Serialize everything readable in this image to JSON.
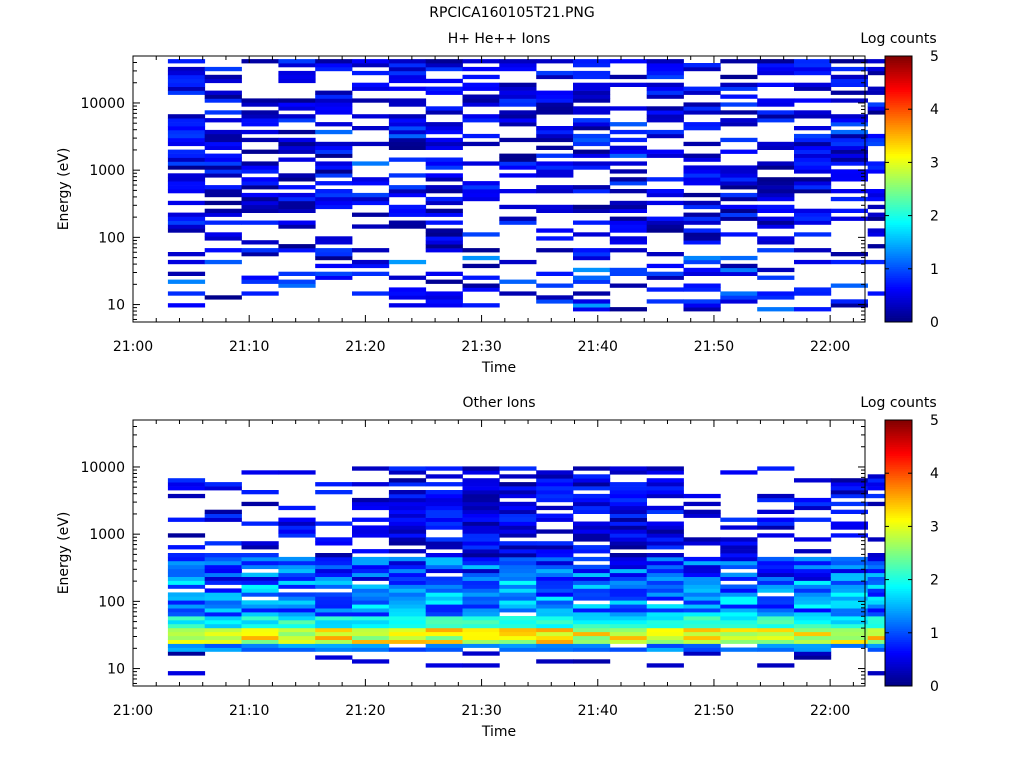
{
  "figure": {
    "filename_title": "RPCICA160105T21.PNG"
  },
  "colors": {
    "colormap": [
      "#000080",
      "#0000ff",
      "#0080ff",
      "#00ffff",
      "#80ff80",
      "#ffff00",
      "#ff8000",
      "#ff0000",
      "#800000"
    ],
    "background": "#ffffff"
  },
  "chart_data": [
    {
      "type": "heatmap",
      "title": "H+ He++ Ions",
      "xlabel": "Time",
      "ylabel": "Energy (eV)",
      "y_scale": "log",
      "ylim": [
        5.5,
        50000
      ],
      "xlim": [
        "21:00",
        "22:03"
      ],
      "x_ticks": [
        "21:00",
        "21:10",
        "21:20",
        "21:30",
        "21:40",
        "21:50",
        "22:00"
      ],
      "y_ticks": [
        "10",
        "100",
        "1000",
        "10000"
      ],
      "colorbar": {
        "label": "Log counts",
        "min": 0,
        "max": 5,
        "ticks": [
          "0",
          "1",
          "2",
          "3",
          "4",
          "5"
        ]
      },
      "time_bins": [
        "21:03",
        "21:06",
        "21:09",
        "21:12",
        "21:15",
        "21:18",
        "21:21",
        "21:24",
        "21:27",
        "21:30",
        "21:33",
        "21:36",
        "21:39",
        "21:42",
        "21:45",
        "21:48",
        "21:51",
        "21:54",
        "21:57",
        "22:00"
      ],
      "dominant_level": "mostly sparse counts, log counts about 0.0 to 1.2 across 10 eV to 40000 eV; isolated cells near 1.3 around 20-40 eV"
    },
    {
      "type": "heatmap",
      "title": "Other Ions",
      "xlabel": "Time",
      "ylabel": "Energy (eV)",
      "y_scale": "log",
      "ylim": [
        5.5,
        50000
      ],
      "xlim": [
        "21:00",
        "22:03"
      ],
      "x_ticks": [
        "21:00",
        "21:10",
        "21:20",
        "21:30",
        "21:40",
        "21:50",
        "22:00"
      ],
      "y_ticks": [
        "10",
        "100",
        "1000",
        "10000"
      ],
      "colorbar": {
        "label": "Log counts",
        "min": 0,
        "max": 5,
        "ticks": [
          "0",
          "1",
          "2",
          "3",
          "4",
          "5"
        ]
      },
      "time_bins": [
        "21:03",
        "21:06",
        "21:09",
        "21:12",
        "21:15",
        "21:18",
        "21:21",
        "21:24",
        "21:27",
        "21:30",
        "21:33",
        "21:36",
        "21:39",
        "21:42",
        "21:45",
        "21:48",
        "21:51",
        "21:54",
        "21:57",
        "22:00"
      ],
      "dominant_level": "intense band 25-40 eV with log counts about 2.5 to 3.6; broad 1-2 level from 40 to 400 eV; sparse counts up to 10000 eV"
    }
  ]
}
